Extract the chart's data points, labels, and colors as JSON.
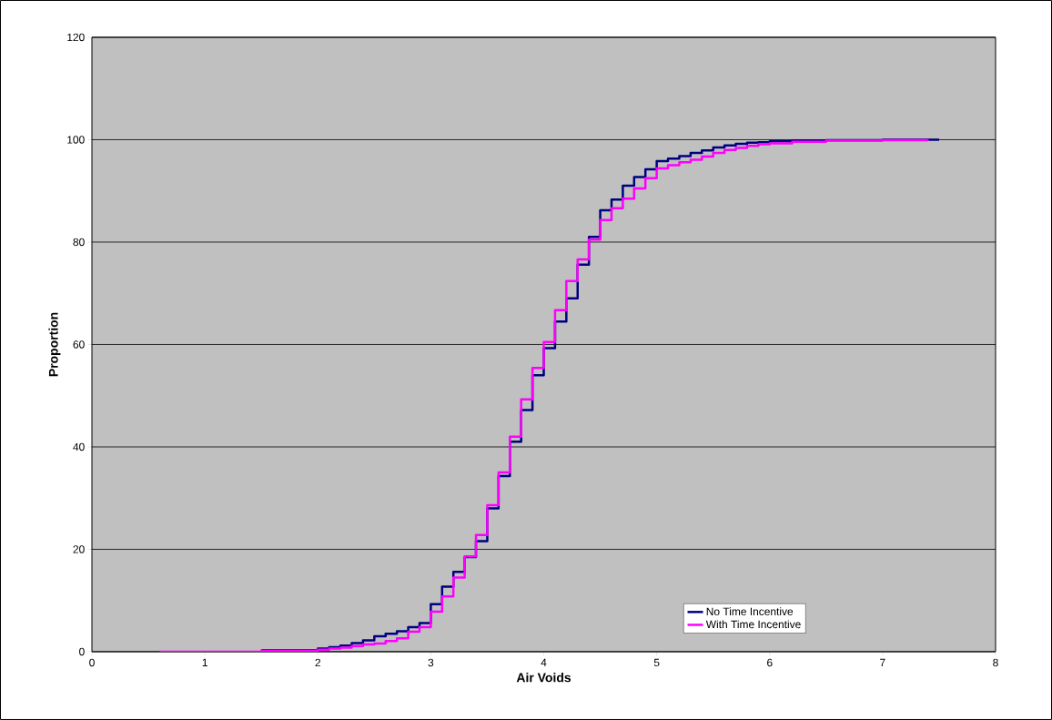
{
  "chart_data": {
    "type": "step",
    "xlabel": "Air Voids",
    "ylabel": "Proportion",
    "series": [
      {
        "name": "No Time Incentive",
        "color": "#000080",
        "x": [
          1.5,
          2.0,
          2.1,
          2.2,
          2.3,
          2.4,
          2.5,
          2.6,
          2.7,
          2.8,
          2.9,
          3.0,
          3.1,
          3.2,
          3.3,
          3.4,
          3.5,
          3.6,
          3.7,
          3.8,
          3.9,
          4.0,
          4.1,
          4.2,
          4.3,
          4.4,
          4.5,
          4.6,
          4.7,
          4.8,
          4.9,
          5.0,
          5.1,
          5.2,
          5.3,
          5.4,
          5.5,
          5.6,
          5.7,
          5.8,
          5.9,
          6.0,
          6.2,
          6.5,
          7.0,
          7.5
        ],
        "values": [
          0.3,
          0.6,
          0.9,
          1.2,
          1.7,
          2.2,
          3.0,
          3.5,
          4.0,
          4.8,
          5.6,
          9.3,
          12.7,
          15.6,
          18.5,
          21.6,
          28.0,
          34.3,
          41.0,
          47.2,
          54.0,
          59.3,
          64.5,
          69.0,
          75.6,
          81.0,
          86.2,
          88.3,
          91.0,
          92.7,
          94.2,
          95.8,
          96.3,
          96.8,
          97.4,
          97.9,
          98.5,
          98.9,
          99.2,
          99.4,
          99.5,
          99.7,
          99.8,
          99.9,
          100,
          100
        ]
      },
      {
        "name": "With Time Incentive",
        "color": "#ff00ff",
        "x": [
          0.6,
          1.5,
          2.0,
          2.1,
          2.2,
          2.3,
          2.4,
          2.5,
          2.6,
          2.7,
          2.8,
          2.9,
          3.0,
          3.1,
          3.2,
          3.3,
          3.4,
          3.5,
          3.6,
          3.7,
          3.8,
          3.9,
          4.0,
          4.1,
          4.2,
          4.3,
          4.4,
          4.5,
          4.6,
          4.7,
          4.8,
          4.9,
          5.0,
          5.1,
          5.2,
          5.3,
          5.4,
          5.5,
          5.6,
          5.7,
          5.8,
          5.9,
          6.0,
          6.2,
          6.5,
          7.0,
          7.4
        ],
        "values": [
          0,
          0.2,
          0.4,
          0.6,
          0.8,
          1.1,
          1.4,
          1.6,
          2.1,
          2.6,
          3.9,
          4.8,
          7.8,
          10.8,
          14.5,
          18.6,
          22.8,
          28.6,
          35.0,
          42.0,
          49.3,
          55.4,
          60.5,
          66.7,
          72.4,
          76.6,
          80.5,
          84.3,
          86.6,
          88.5,
          90.5,
          92.5,
          94.4,
          95.0,
          95.6,
          96.1,
          96.7,
          97.4,
          98.0,
          98.4,
          98.8,
          99.1,
          99.3,
          99.6,
          99.8,
          99.9,
          100
        ]
      }
    ],
    "xlim": [
      0,
      8
    ],
    "xticks": [
      0,
      1,
      2,
      3,
      4,
      5,
      6,
      7,
      8
    ],
    "ylim": [
      0,
      120
    ],
    "yticks": [
      0,
      20,
      40,
      60,
      80,
      100,
      120
    ],
    "grid": "y",
    "legend": "bottom right",
    "marker": "none",
    "line_style": "solid"
  }
}
